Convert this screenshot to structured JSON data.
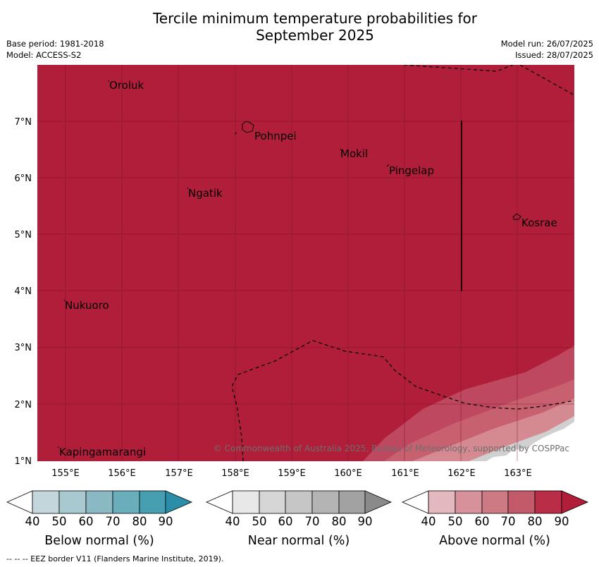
{
  "title_line1": "Tercile minimum temperature probabilities for",
  "title_line2": "September 2025",
  "base_period": "Base period: 1981-2018",
  "model": "Model: ACCESS-S2",
  "model_run": "Model run: 26/07/2025",
  "issued": "Issued: 28/07/2025",
  "map": {
    "lon_range": [
      154.5,
      164.0
    ],
    "lat_range": [
      1.0,
      8.0
    ],
    "x_ticks": [
      "155°E",
      "156°E",
      "157°E",
      "158°E",
      "159°E",
      "160°E",
      "161°E",
      "162°E",
      "163°E"
    ],
    "y_ticks": [
      "1°N",
      "2°N",
      "3°N",
      "4°N",
      "5°N",
      "6°N",
      "7°N"
    ],
    "places": [
      "Oroluk",
      "Pohnpei",
      "Mokil",
      "Pingelap",
      "Ngatik",
      "Kosrae",
      "Nukuoro",
      "Kapingamarangi"
    ],
    "copyright": "© Commonwealth of Australia 2025, Bureau of Meteorology, supported by COSPPac",
    "dominant_category": "Above normal",
    "dominant_probability": "80-90%",
    "colors": {
      "above_90": "#b01e3a",
      "above_80": "#be4860",
      "above_70": "#c8616f",
      "above_60": "#d58a92",
      "near_low": "#d0d0d0",
      "land": "#ffffff"
    }
  },
  "colorbars": [
    {
      "label": "Below normal (%)",
      "ticks": [
        "40",
        "50",
        "60",
        "70",
        "80",
        "90"
      ],
      "colors": [
        "#c2d6dc",
        "#a7c9cf",
        "#8ab9c3",
        "#6aaebb",
        "#469fb1",
        "#2a8ea8"
      ]
    },
    {
      "label": "Near normal (%)",
      "ticks": [
        "40",
        "50",
        "60",
        "70",
        "80",
        "90"
      ],
      "colors": [
        "#e8e8e8",
        "#d6d6d6",
        "#c6c6c6",
        "#b4b4b4",
        "#a2a2a2",
        "#8a8a8a"
      ]
    },
    {
      "label": "Above normal (%)",
      "ticks": [
        "40",
        "50",
        "60",
        "70",
        "80",
        "90"
      ],
      "colors": [
        "#e3b8bf",
        "#d6919a",
        "#cc7a84",
        "#c35a69",
        "#b92d47",
        "#b01e3a"
      ]
    }
  ],
  "footer": "--  --  -- EEZ border V11 (Flanders Marine Institute, 2019)."
}
